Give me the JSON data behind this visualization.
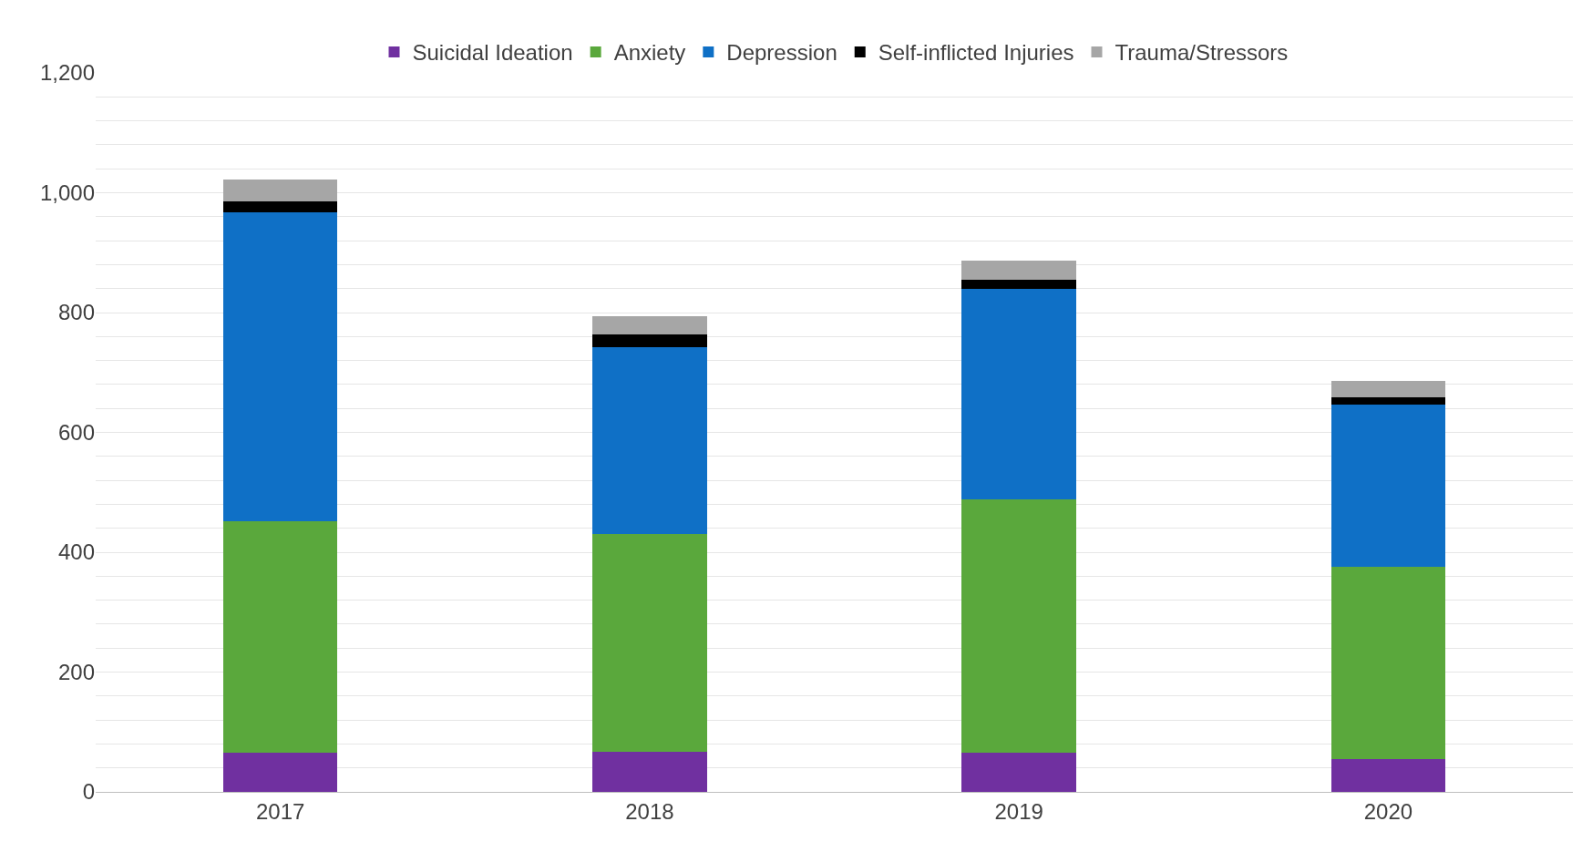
{
  "chart_data": {
    "type": "bar",
    "stacked": true,
    "categories": [
      "2017",
      "2018",
      "2019",
      "2020"
    ],
    "series": [
      {
        "name": "Suicidal Ideation",
        "color": "#7030a0",
        "values": [
          65,
          67,
          65,
          55
        ]
      },
      {
        "name": "Anxiety",
        "color": "#5aa83c",
        "values": [
          387,
          363,
          423,
          320
        ]
      },
      {
        "name": "Depression",
        "color": "#0f70c6",
        "values": [
          516,
          312,
          352,
          272
        ]
      },
      {
        "name": "Self-inflicted Injuries",
        "color": "#000000",
        "values": [
          17,
          21,
          15,
          12
        ]
      },
      {
        "name": "Trauma/Stressors",
        "color": "#a6a6a6",
        "values": [
          37,
          31,
          31,
          27
        ]
      }
    ],
    "ylim": [
      0,
      1200
    ],
    "yticks": [
      0,
      {
        "value": 40,
        "label": null
      },
      {
        "value": 80,
        "label": null
      },
      {
        "value": 120,
        "label": null
      },
      {
        "value": 160,
        "label": null
      },
      200,
      {
        "value": 240,
        "label": null
      },
      {
        "value": 280,
        "label": null
      },
      {
        "value": 320,
        "label": null
      },
      {
        "value": 360,
        "label": null
      },
      400,
      {
        "value": 440,
        "label": null
      },
      {
        "value": 480,
        "label": null
      },
      {
        "value": 520,
        "label": null
      },
      {
        "value": 560,
        "label": null
      },
      600,
      {
        "value": 640,
        "label": null
      },
      {
        "value": 680,
        "label": null
      },
      {
        "value": 720,
        "label": null
      },
      {
        "value": 760,
        "label": null
      },
      800,
      {
        "value": 840,
        "label": null
      },
      {
        "value": 880,
        "label": null
      },
      {
        "value": 920,
        "label": null
      },
      {
        "value": 960,
        "label": null
      },
      {
        "value": 1000,
        "label": "1,000"
      },
      {
        "value": 1040,
        "label": null
      },
      {
        "value": 1080,
        "label": null
      },
      {
        "value": 1120,
        "label": null
      },
      {
        "value": 1160,
        "label": null
      },
      {
        "value": 1200,
        "label": "1,200"
      }
    ],
    "grid": "y",
    "legend": "top"
  }
}
